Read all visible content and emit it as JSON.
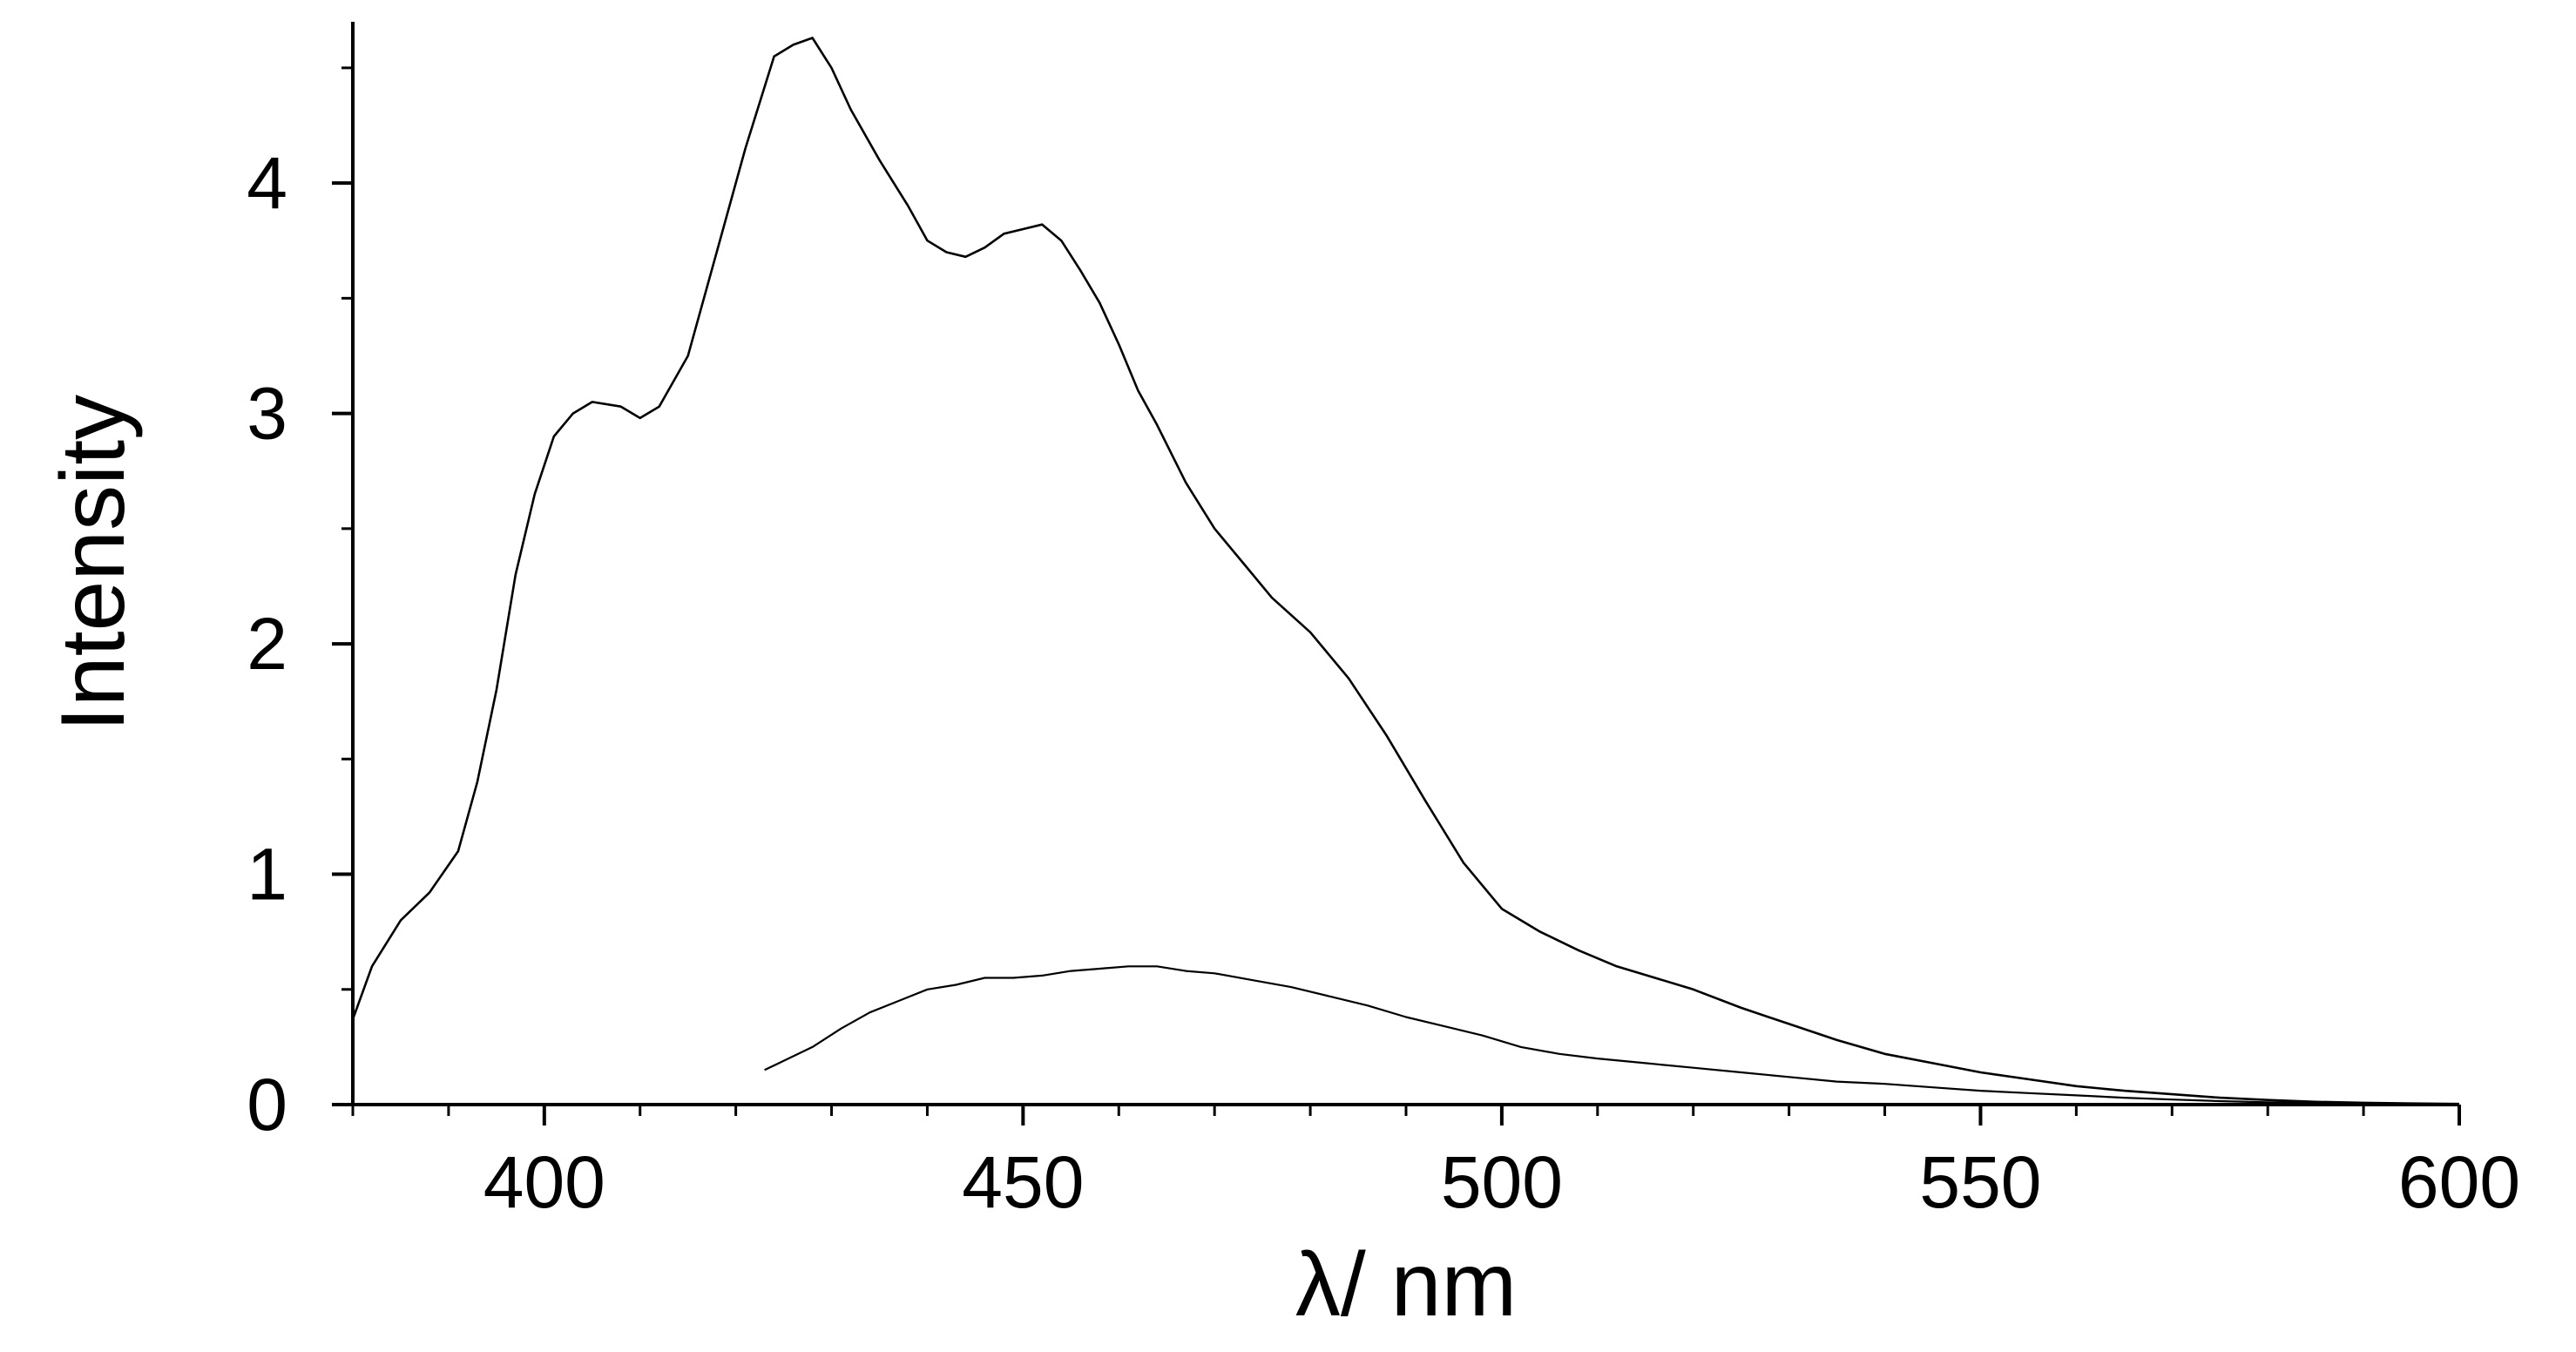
{
  "chart_data": {
    "type": "line",
    "title": "",
    "xlabel": "λ/ nm",
    "ylabel": "Intensity",
    "xlim": [
      380,
      600
    ],
    "ylim": [
      0,
      4.7
    ],
    "xticks": [
      400,
      450,
      500,
      550,
      600
    ],
    "xtick_labels": [
      "400",
      "450",
      "500",
      "550",
      "600"
    ],
    "yticks": [
      0,
      1,
      2,
      3,
      4
    ],
    "ytick_labels": [
      "0",
      "1",
      "2",
      "3",
      "4"
    ],
    "x_minor_step": 10,
    "y_minor_step": 0.5,
    "grid": false,
    "legend": "none",
    "line_color": "#000000",
    "series": [
      {
        "x": [
          380,
          382,
          385,
          388,
          391,
          393,
          395,
          397,
          399,
          401,
          403,
          405,
          408,
          410,
          412,
          415,
          418,
          421,
          424,
          426,
          428,
          430,
          432,
          435,
          438,
          440,
          442,
          444,
          446,
          448,
          450,
          452,
          454,
          456,
          458,
          460,
          462,
          464,
          467,
          470,
          473,
          476,
          480,
          484,
          488,
          492,
          496,
          500,
          504,
          508,
          512,
          516,
          520,
          525,
          530,
          535,
          540,
          545,
          550,
          555,
          560,
          565,
          570,
          575,
          580,
          585,
          590,
          595,
          600
        ],
        "y": [
          0.37,
          0.6,
          0.8,
          0.92,
          1.1,
          1.4,
          1.8,
          2.3,
          2.65,
          2.9,
          3.0,
          3.05,
          3.03,
          2.98,
          3.03,
          3.25,
          3.7,
          4.15,
          4.55,
          4.6,
          4.63,
          4.5,
          4.32,
          4.1,
          3.9,
          3.75,
          3.7,
          3.68,
          3.72,
          3.78,
          3.8,
          3.82,
          3.75,
          3.62,
          3.48,
          3.3,
          3.1,
          2.95,
          2.7,
          2.5,
          2.35,
          2.2,
          2.05,
          1.85,
          1.6,
          1.32,
          1.05,
          0.85,
          0.75,
          0.67,
          0.6,
          0.55,
          0.5,
          0.42,
          0.35,
          0.28,
          0.22,
          0.18,
          0.14,
          0.11,
          0.08,
          0.06,
          0.045,
          0.03,
          0.02,
          0.012,
          0.008,
          0.005,
          0.003
        ]
      },
      {
        "x": [
          423,
          425,
          428,
          431,
          434,
          437,
          440,
          443,
          446,
          449,
          452,
          455,
          458,
          461,
          464,
          467,
          470,
          474,
          478,
          482,
          486,
          490,
          494,
          498,
          502,
          506,
          510,
          515,
          520,
          525,
          530,
          535,
          540,
          545,
          550,
          555,
          560,
          565,
          570,
          575,
          580,
          585,
          590,
          595,
          600
        ],
        "y": [
          0.15,
          0.19,
          0.25,
          0.33,
          0.4,
          0.45,
          0.5,
          0.52,
          0.55,
          0.55,
          0.56,
          0.58,
          0.59,
          0.6,
          0.6,
          0.58,
          0.57,
          0.54,
          0.51,
          0.47,
          0.43,
          0.38,
          0.34,
          0.3,
          0.25,
          0.22,
          0.2,
          0.18,
          0.16,
          0.14,
          0.12,
          0.1,
          0.09,
          0.075,
          0.06,
          0.05,
          0.04,
          0.03,
          0.022,
          0.015,
          0.01,
          0.007,
          0.005,
          0.003,
          0.002
        ]
      }
    ]
  }
}
